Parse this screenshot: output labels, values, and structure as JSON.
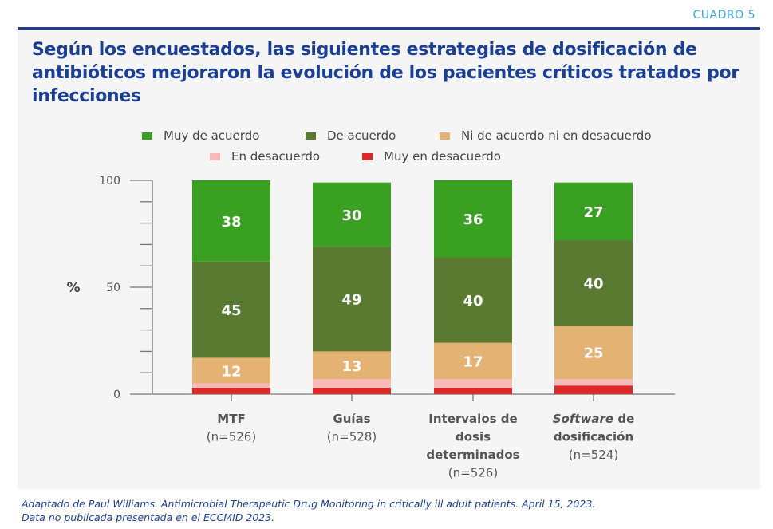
{
  "header": {
    "label": "CUADRO 5"
  },
  "title": "Según los encuestados, las siguientes estrategias de dosificación de antibióticos  mejoraron la evolución de los pacientes críticos tratados por infecciones",
  "footnote": {
    "line1": "Adaptado de Paul Williams. Antimicrobial Therapeutic Drug Monitoring in critically ill adult patients. April 15, 2023.",
    "line2": "Data no publicada presentada en el ECCMID 2023."
  },
  "chart_data": {
    "type": "bar",
    "stacked": true,
    "title": "Según los encuestados, las siguientes estrategias de dosificación de antibióticos mejoraron la evolución de los pacientes críticos tratados por infecciones",
    "xlabel": "",
    "ylabel": "%",
    "ylim": [
      0,
      100
    ],
    "yticks": [
      0,
      50,
      100
    ],
    "grid": false,
    "legend_position": "top",
    "categories": [
      {
        "name": "MTF",
        "name_italic": "",
        "name_rest": "MTF",
        "n": "(n=526)"
      },
      {
        "name": "Guías",
        "name_italic": "",
        "name_rest": "Guías",
        "n": "(n=528)"
      },
      {
        "name": "Intervalos de dosis determinados",
        "name_italic": "",
        "name_rest": "Intervalos de dosis determinados",
        "n": "(n=526)"
      },
      {
        "name": "Software de dosificación",
        "name_italic": "Software",
        "name_rest": " de dosificación",
        "n": "(n=524)"
      }
    ],
    "series": [
      {
        "name": "Muy en desacuerdo",
        "color": "#dc2828",
        "values": [
          3,
          3,
          3,
          4
        ],
        "labeled": false
      },
      {
        "name": "En desacuerdo",
        "color": "#f9b9b9",
        "values": [
          2,
          4,
          4,
          3
        ],
        "labeled": false
      },
      {
        "name": "Ni de acuerdo ni en desacuerdo",
        "color": "#e4b373",
        "values": [
          12,
          13,
          17,
          25
        ],
        "labeled": true
      },
      {
        "name": "De acuerdo",
        "color": "#5a7a32",
        "values": [
          45,
          49,
          40,
          40
        ],
        "labeled": true
      },
      {
        "name": "Muy de acuerdo",
        "color": "#3aa021",
        "values": [
          38,
          30,
          36,
          27
        ],
        "labeled": true
      }
    ],
    "legend_order": [
      "Muy de acuerdo",
      "De acuerdo",
      "Ni de acuerdo ni en desacuerdo",
      "En desacuerdo",
      "Muy en desacuerdo"
    ]
  }
}
